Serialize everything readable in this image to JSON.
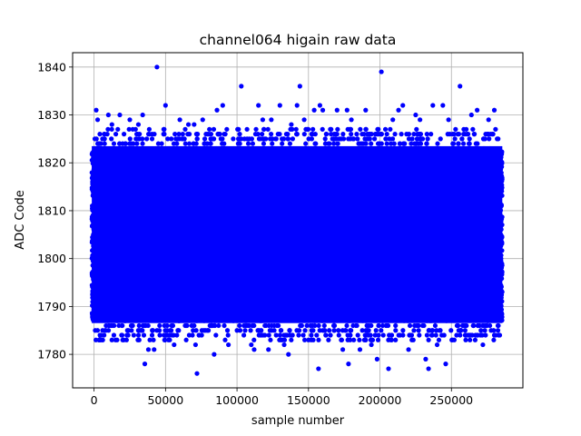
{
  "chart_data": {
    "type": "scatter",
    "title": "channel064 higain raw data",
    "xlabel": "sample number",
    "ylabel": "ADC Code",
    "xlim": [
      -15000,
      300000
    ],
    "ylim": [
      1773,
      1843
    ],
    "xticks": [
      0,
      50000,
      100000,
      150000,
      200000,
      250000
    ],
    "yticks": [
      1780,
      1790,
      1800,
      1810,
      1820,
      1830,
      1840
    ],
    "grid": true,
    "marker_color": "#0000ff",
    "n_samples": 284000,
    "dense_band": {
      "x": [
        0,
        284000
      ],
      "y": [
        1787,
        1823
      ]
    },
    "sparse_ranges": {
      "upper": [
        1823,
        1827
      ],
      "lower": [
        1783,
        1787
      ]
    },
    "outliers": [
      {
        "x": 1500,
        "y": 1831
      },
      {
        "x": 2500,
        "y": 1829
      },
      {
        "x": 3500,
        "y": 1783
      },
      {
        "x": 5500,
        "y": 1783
      },
      {
        "x": 7000,
        "y": 1784
      },
      {
        "x": 10000,
        "y": 1830
      },
      {
        "x": 12500,
        "y": 1828
      },
      {
        "x": 14000,
        "y": 1786
      },
      {
        "x": 15000,
        "y": 1783
      },
      {
        "x": 18000,
        "y": 1830
      },
      {
        "x": 20000,
        "y": 1783
      },
      {
        "x": 25000,
        "y": 1829
      },
      {
        "x": 27000,
        "y": 1786
      },
      {
        "x": 31000,
        "y": 1828
      },
      {
        "x": 34000,
        "y": 1830
      },
      {
        "x": 35500,
        "y": 1778
      },
      {
        "x": 38000,
        "y": 1781
      },
      {
        "x": 42000,
        "y": 1781
      },
      {
        "x": 44000,
        "y": 1840
      },
      {
        "x": 50000,
        "y": 1832
      },
      {
        "x": 56000,
        "y": 1782
      },
      {
        "x": 60000,
        "y": 1829
      },
      {
        "x": 64000,
        "y": 1786
      },
      {
        "x": 66000,
        "y": 1828
      },
      {
        "x": 70000,
        "y": 1828
      },
      {
        "x": 71000,
        "y": 1782
      },
      {
        "x": 72000,
        "y": 1776
      },
      {
        "x": 76000,
        "y": 1829
      },
      {
        "x": 80000,
        "y": 1785
      },
      {
        "x": 84000,
        "y": 1780
      },
      {
        "x": 86000,
        "y": 1831
      },
      {
        "x": 90000,
        "y": 1832
      },
      {
        "x": 94000,
        "y": 1782
      },
      {
        "x": 100000,
        "y": 1785
      },
      {
        "x": 103000,
        "y": 1836
      },
      {
        "x": 107000,
        "y": 1827
      },
      {
        "x": 110000,
        "y": 1782
      },
      {
        "x": 112000,
        "y": 1781
      },
      {
        "x": 115000,
        "y": 1832
      },
      {
        "x": 118000,
        "y": 1829
      },
      {
        "x": 122000,
        "y": 1781
      },
      {
        "x": 124000,
        "y": 1829
      },
      {
        "x": 130000,
        "y": 1832
      },
      {
        "x": 133000,
        "y": 1782
      },
      {
        "x": 136000,
        "y": 1780
      },
      {
        "x": 138000,
        "y": 1828
      },
      {
        "x": 142000,
        "y": 1832
      },
      {
        "x": 144000,
        "y": 1836
      },
      {
        "x": 147000,
        "y": 1829
      },
      {
        "x": 150000,
        "y": 1783
      },
      {
        "x": 154000,
        "y": 1831
      },
      {
        "x": 157000,
        "y": 1777
      },
      {
        "x": 158000,
        "y": 1832
      },
      {
        "x": 160000,
        "y": 1831
      },
      {
        "x": 164000,
        "y": 1783
      },
      {
        "x": 170000,
        "y": 1831
      },
      {
        "x": 174000,
        "y": 1781
      },
      {
        "x": 177000,
        "y": 1831
      },
      {
        "x": 178000,
        "y": 1778
      },
      {
        "x": 180000,
        "y": 1829
      },
      {
        "x": 186000,
        "y": 1781
      },
      {
        "x": 190000,
        "y": 1831
      },
      {
        "x": 194000,
        "y": 1782
      },
      {
        "x": 198000,
        "y": 1779
      },
      {
        "x": 201000,
        "y": 1839
      },
      {
        "x": 206000,
        "y": 1777
      },
      {
        "x": 209000,
        "y": 1829
      },
      {
        "x": 213000,
        "y": 1831
      },
      {
        "x": 216000,
        "y": 1832
      },
      {
        "x": 220000,
        "y": 1781
      },
      {
        "x": 225000,
        "y": 1830
      },
      {
        "x": 228000,
        "y": 1829
      },
      {
        "x": 232000,
        "y": 1779
      },
      {
        "x": 234000,
        "y": 1777
      },
      {
        "x": 237000,
        "y": 1832
      },
      {
        "x": 240000,
        "y": 1782
      },
      {
        "x": 244000,
        "y": 1832
      },
      {
        "x": 246000,
        "y": 1778
      },
      {
        "x": 248000,
        "y": 1829
      },
      {
        "x": 252000,
        "y": 1783
      },
      {
        "x": 256000,
        "y": 1836
      },
      {
        "x": 260000,
        "y": 1783
      },
      {
        "x": 264000,
        "y": 1830
      },
      {
        "x": 268000,
        "y": 1831
      },
      {
        "x": 272000,
        "y": 1782
      },
      {
        "x": 276000,
        "y": 1829
      },
      {
        "x": 280000,
        "y": 1831
      },
      {
        "x": 283000,
        "y": 1784
      }
    ]
  }
}
